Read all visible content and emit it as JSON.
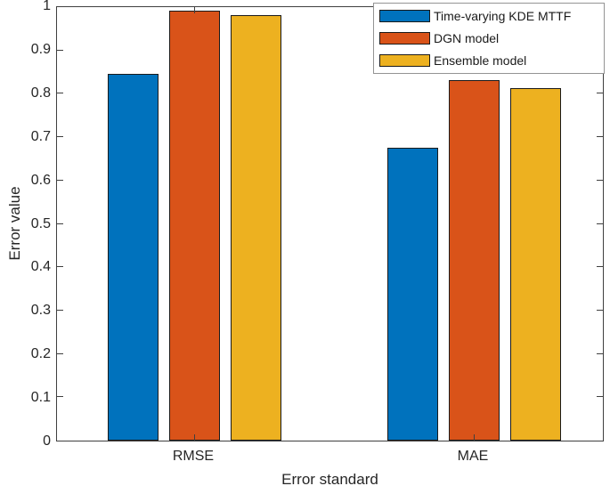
{
  "chart_data": {
    "type": "bar",
    "title": "",
    "xlabel": "Error standard",
    "ylabel": "Error value",
    "categories": [
      "RMSE",
      "MAE"
    ],
    "series": [
      {
        "name": "Time-varying KDE MTTF",
        "color": "#0072BD",
        "values": [
          0.847,
          0.675
        ]
      },
      {
        "name": "DGN model",
        "color": "#D95319",
        "values": [
          0.992,
          0.832
        ]
      },
      {
        "name": "Ensemble model",
        "color": "#EDB120",
        "values": [
          0.982,
          0.813
        ]
      }
    ],
    "ylim": [
      0,
      1
    ],
    "yticks": [
      "0",
      "0.1",
      "0.2",
      "0.3",
      "0.4",
      "0.5",
      "0.6",
      "0.7",
      "0.8",
      "0.9",
      "1"
    ],
    "legend_position": "top-right",
    "grid": false,
    "axis_color": "#3f3f3f",
    "bar_edge_color": "#1a1a1a"
  }
}
